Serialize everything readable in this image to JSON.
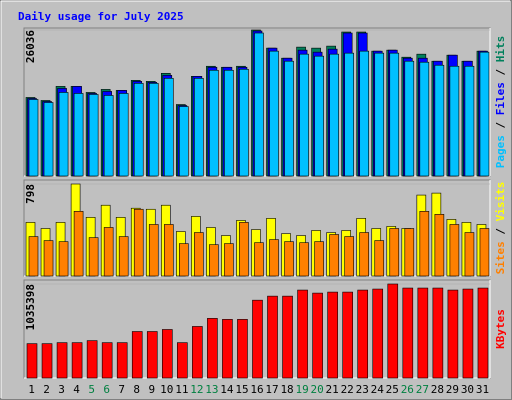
{
  "chart_data": {
    "type": "bar",
    "title": "Daily usage for July 2025",
    "categories": [
      "1",
      "2",
      "3",
      "4",
      "5",
      "6",
      "7",
      "8",
      "9",
      "10",
      "11",
      "12",
      "13",
      "14",
      "15",
      "16",
      "17",
      "18",
      "19",
      "20",
      "21",
      "22",
      "23",
      "24",
      "25",
      "26",
      "27",
      "28",
      "29",
      "30",
      "31"
    ],
    "category_colors": [
      "#000000",
      "#000000",
      "#000000",
      "#000000",
      "#008040",
      "#008040",
      "#000000",
      "#000000",
      "#000000",
      "#000000",
      "#000000",
      "#008040",
      "#008040",
      "#000000",
      "#000000",
      "#000000",
      "#000000",
      "#000000",
      "#008040",
      "#008040",
      "#000000",
      "#000000",
      "#000000",
      "#000000",
      "#000000",
      "#008040",
      "#008040",
      "#000000",
      "#000000",
      "#000000",
      "#000000"
    ],
    "legend_separator": " / ",
    "panels": [
      {
        "ylim": [
          0,
          26036
        ],
        "yticks": [
          26036
        ],
        "series": [
          {
            "name": "Hits",
            "color": "#00805C",
            "values": [
              14006,
              13467,
              15981,
              15981,
              14903,
              15442,
              15263,
              17058,
              16879,
              18315,
              12749,
              17776,
              19572,
              19392,
              19572,
              26036,
              22804,
              21009,
              22984,
              22804,
              23163,
              25677,
              25677,
              22265,
              22445,
              21188,
              21727,
              20470,
              21547,
              20470,
              22265
            ]
          },
          {
            "name": "Files",
            "color": "#0000FF",
            "values": [
              13826,
              13287,
              15622,
              15981,
              14724,
              15083,
              15263,
              16879,
              16699,
              17956,
              12569,
              17776,
              19392,
              19392,
              19392,
              25857,
              22804,
              21009,
              22445,
              22086,
              22625,
              25497,
              25497,
              22265,
              22445,
              21009,
              21009,
              20470,
              21547,
              20470,
              22265
            ]
          },
          {
            "name": "Pages",
            "color": "#00C0FF",
            "values": [
              13647,
              13108,
              14903,
              14724,
              14544,
              14365,
              14724,
              16520,
              16520,
              17417,
              12390,
              17417,
              18854,
              18854,
              19033,
              25497,
              22265,
              20470,
              21727,
              21368,
              21727,
              21906,
              22265,
              21906,
              21906,
              20470,
              20290,
              19751,
              19572,
              19572,
              22086
            ]
          }
        ]
      },
      {
        "ylim": [
          0,
          798
        ],
        "yticks": [
          798
        ],
        "series": [
          {
            "name": "Visits",
            "color": "#FFFF00",
            "values": [
              465,
              412,
              465,
              798,
              509,
              614,
              509,
              588,
              579,
              614,
              386,
              517,
              421,
              351,
              482,
              403,
              500,
              368,
              351,
              395,
              377,
              395,
              500,
              412,
              430,
              412,
              702,
              719,
              491,
              465,
              447
            ]
          },
          {
            "name": "Sites",
            "color": "#FF8000",
            "values": [
              342,
              307,
              298,
              561,
              333,
              421,
              342,
              579,
              447,
              447,
              281,
              377,
              272,
              281,
              465,
              289,
              316,
              298,
              289,
              298,
              360,
              342,
              377,
              307,
              412,
              412,
              561,
              535,
              447,
              377,
              412
            ]
          }
        ]
      },
      {
        "ylim": [
          0,
          1035398
        ],
        "yticks": [
          1035398
        ],
        "series": [
          {
            "name": "KBytes",
            "color": "#FF0000",
            "values": [
              378522,
              378522,
              389655,
              389655,
              411921,
              389655,
              389655,
              512118,
              512118,
              534384,
              389655,
              567783,
              656847,
              645714,
              645714,
              857241,
              901773,
              901773,
              968571,
              935172,
              946305,
              946305,
              968571,
              979704,
              1035398,
              990837,
              990837,
              990837,
              968571,
              979704,
              990837
            ]
          }
        ]
      }
    ]
  }
}
